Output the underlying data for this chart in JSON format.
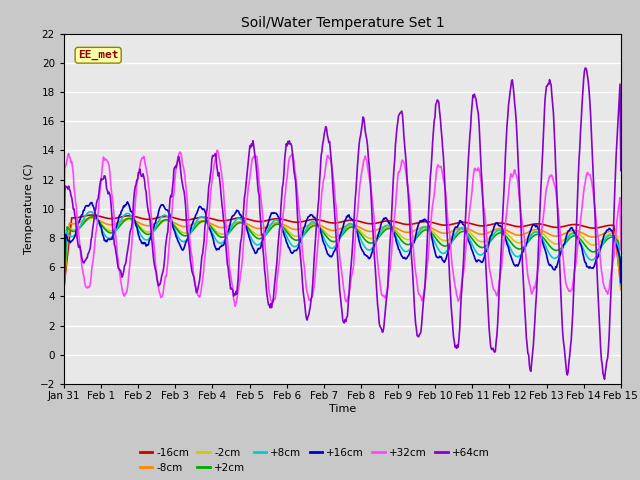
{
  "title": "Soil/Water Temperature Set 1",
  "xlabel": "Time",
  "ylabel": "Temperature (C)",
  "ylim": [
    -2,
    22
  ],
  "yticks": [
    -2,
    0,
    2,
    4,
    6,
    8,
    10,
    12,
    14,
    16,
    18,
    20,
    22
  ],
  "annotation": "EE_met",
  "series": {
    "-16cm": {
      "color": "#cc0000",
      "lw": 1.2
    },
    "-8cm": {
      "color": "#ff8800",
      "lw": 1.2
    },
    "-2cm": {
      "color": "#cccc00",
      "lw": 1.2
    },
    "+2cm": {
      "color": "#00aa00",
      "lw": 1.2
    },
    "+8cm": {
      "color": "#00cccc",
      "lw": 1.2
    },
    "+16cm": {
      "color": "#0000cc",
      "lw": 1.2
    },
    "+32cm": {
      "color": "#ff44ff",
      "lw": 1.2
    },
    "+64cm": {
      "color": "#8800cc",
      "lw": 1.2
    }
  },
  "xticklabels": [
    "Jan 31",
    "Feb 1",
    "Feb 2",
    "Feb 3",
    "Feb 4",
    "Feb 5",
    "Feb 6",
    "Feb 7",
    "Feb 8",
    "Feb 9",
    "Feb 10",
    "Feb 11",
    "Feb 12",
    "Feb 13",
    "Feb 14",
    "Feb 15"
  ]
}
